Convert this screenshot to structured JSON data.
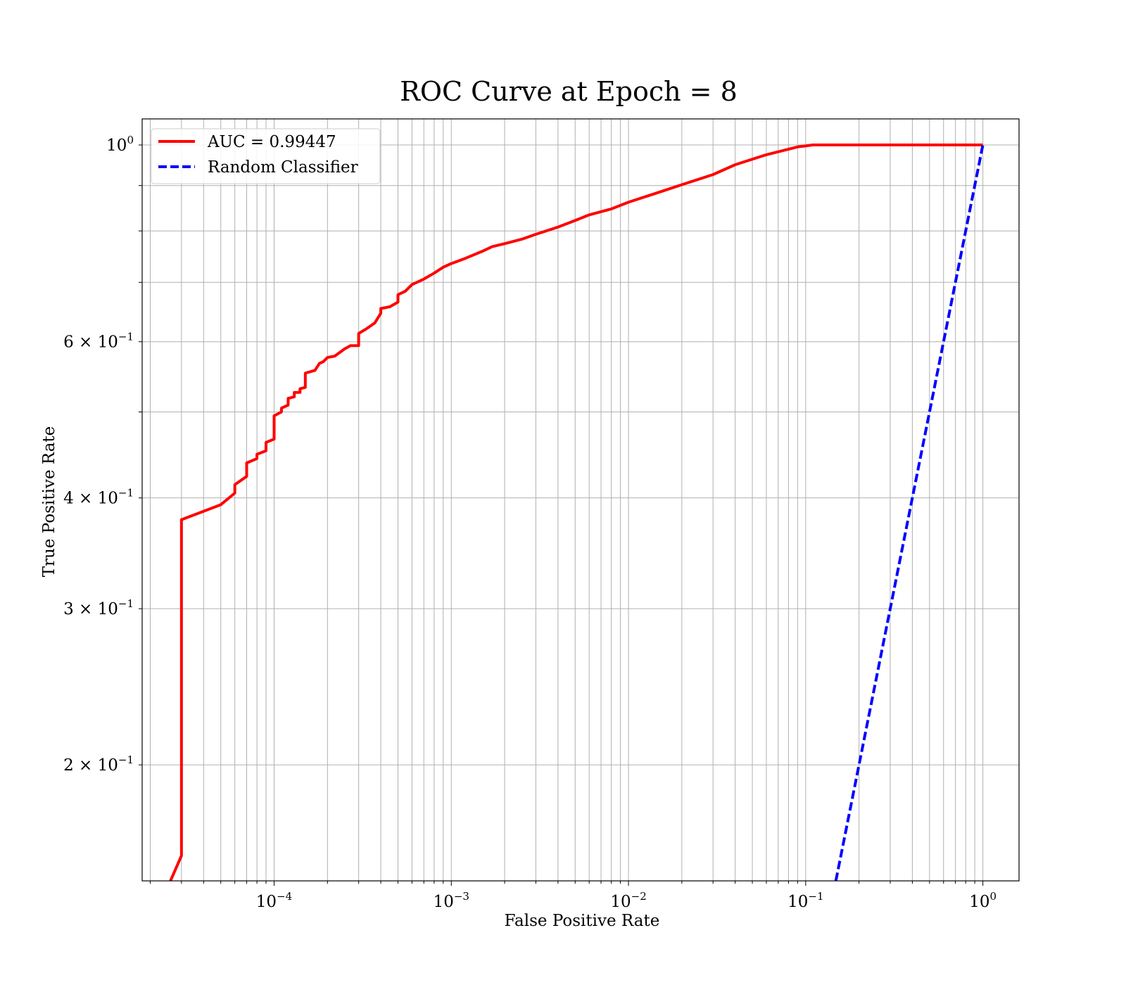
{
  "chart_data": {
    "type": "line",
    "title": "ROC Curve at Epoch = 8",
    "xlabel": "False Positive Rate",
    "ylabel": "True Positive Rate",
    "xscale": "log",
    "yscale": "log",
    "xlim": [
      1.8e-05,
      1.6
    ],
    "ylim": [
      0.148,
      1.07
    ],
    "grid": true,
    "legend_position": "top-left",
    "x_ticks": [
      {
        "value": 0.0001,
        "base": "10",
        "exp": "−4"
      },
      {
        "value": 0.001,
        "base": "10",
        "exp": "−3"
      },
      {
        "value": 0.01,
        "base": "10",
        "exp": "−2"
      },
      {
        "value": 0.1,
        "base": "10",
        "exp": "−1"
      },
      {
        "value": 1,
        "base": "10",
        "exp": "0"
      }
    ],
    "y_ticks": [
      {
        "value": 1,
        "base": "10",
        "exp": "0"
      },
      {
        "value": 0.6,
        "base": "6 × 10",
        "exp": "−1"
      },
      {
        "value": 0.4,
        "base": "4 × 10",
        "exp": "−1"
      },
      {
        "value": 0.3,
        "base": "3 × 10",
        "exp": "−1"
      },
      {
        "value": 0.2,
        "base": "2 × 10",
        "exp": "−1"
      }
    ],
    "series": [
      {
        "name": "AUC = 0.99447",
        "color": "#ff0000",
        "style": "solid",
        "x": [
          2.6e-05,
          3e-05,
          3e-05,
          5e-05,
          6e-05,
          6e-05,
          7e-05,
          7e-05,
          8e-05,
          8e-05,
          9e-05,
          9e-05,
          0.0001,
          0.0001,
          0.00011,
          0.00011,
          0.00012,
          0.00012,
          0.00013,
          0.00013,
          0.00014,
          0.00014,
          0.00015,
          0.00015,
          0.00017,
          0.00018,
          0.00019,
          0.0002,
          0.00022,
          0.00025,
          0.00027,
          0.0003,
          0.0003,
          0.00033,
          0.00037,
          0.0004,
          0.0004,
          0.00045,
          0.0005,
          0.0005,
          0.00055,
          0.0006,
          0.0007,
          0.0008,
          0.0009,
          0.001,
          0.0012,
          0.0015,
          0.0017,
          0.002,
          0.0025,
          0.003,
          0.004,
          0.005,
          0.006,
          0.008,
          0.01,
          0.015,
          0.02,
          0.03,
          0.04,
          0.06,
          0.09,
          0.11,
          0.2,
          0.4,
          1.0
        ],
        "y": [
          0.148,
          0.158,
          0.378,
          0.393,
          0.405,
          0.414,
          0.423,
          0.438,
          0.443,
          0.448,
          0.452,
          0.462,
          0.466,
          0.495,
          0.5,
          0.505,
          0.509,
          0.518,
          0.52,
          0.526,
          0.526,
          0.531,
          0.533,
          0.553,
          0.557,
          0.567,
          0.57,
          0.576,
          0.578,
          0.589,
          0.594,
          0.594,
          0.613,
          0.62,
          0.63,
          0.646,
          0.654,
          0.657,
          0.665,
          0.678,
          0.684,
          0.696,
          0.706,
          0.717,
          0.728,
          0.735,
          0.745,
          0.759,
          0.768,
          0.774,
          0.783,
          0.793,
          0.808,
          0.822,
          0.834,
          0.847,
          0.862,
          0.885,
          0.902,
          0.926,
          0.95,
          0.975,
          0.995,
          1.0,
          1.0,
          1.0,
          1.0
        ]
      },
      {
        "name": "Random Classifier",
        "color": "#0000ff",
        "style": "dashed",
        "x": [
          0.148,
          1.0
        ],
        "y": [
          0.148,
          1.0
        ]
      }
    ]
  }
}
